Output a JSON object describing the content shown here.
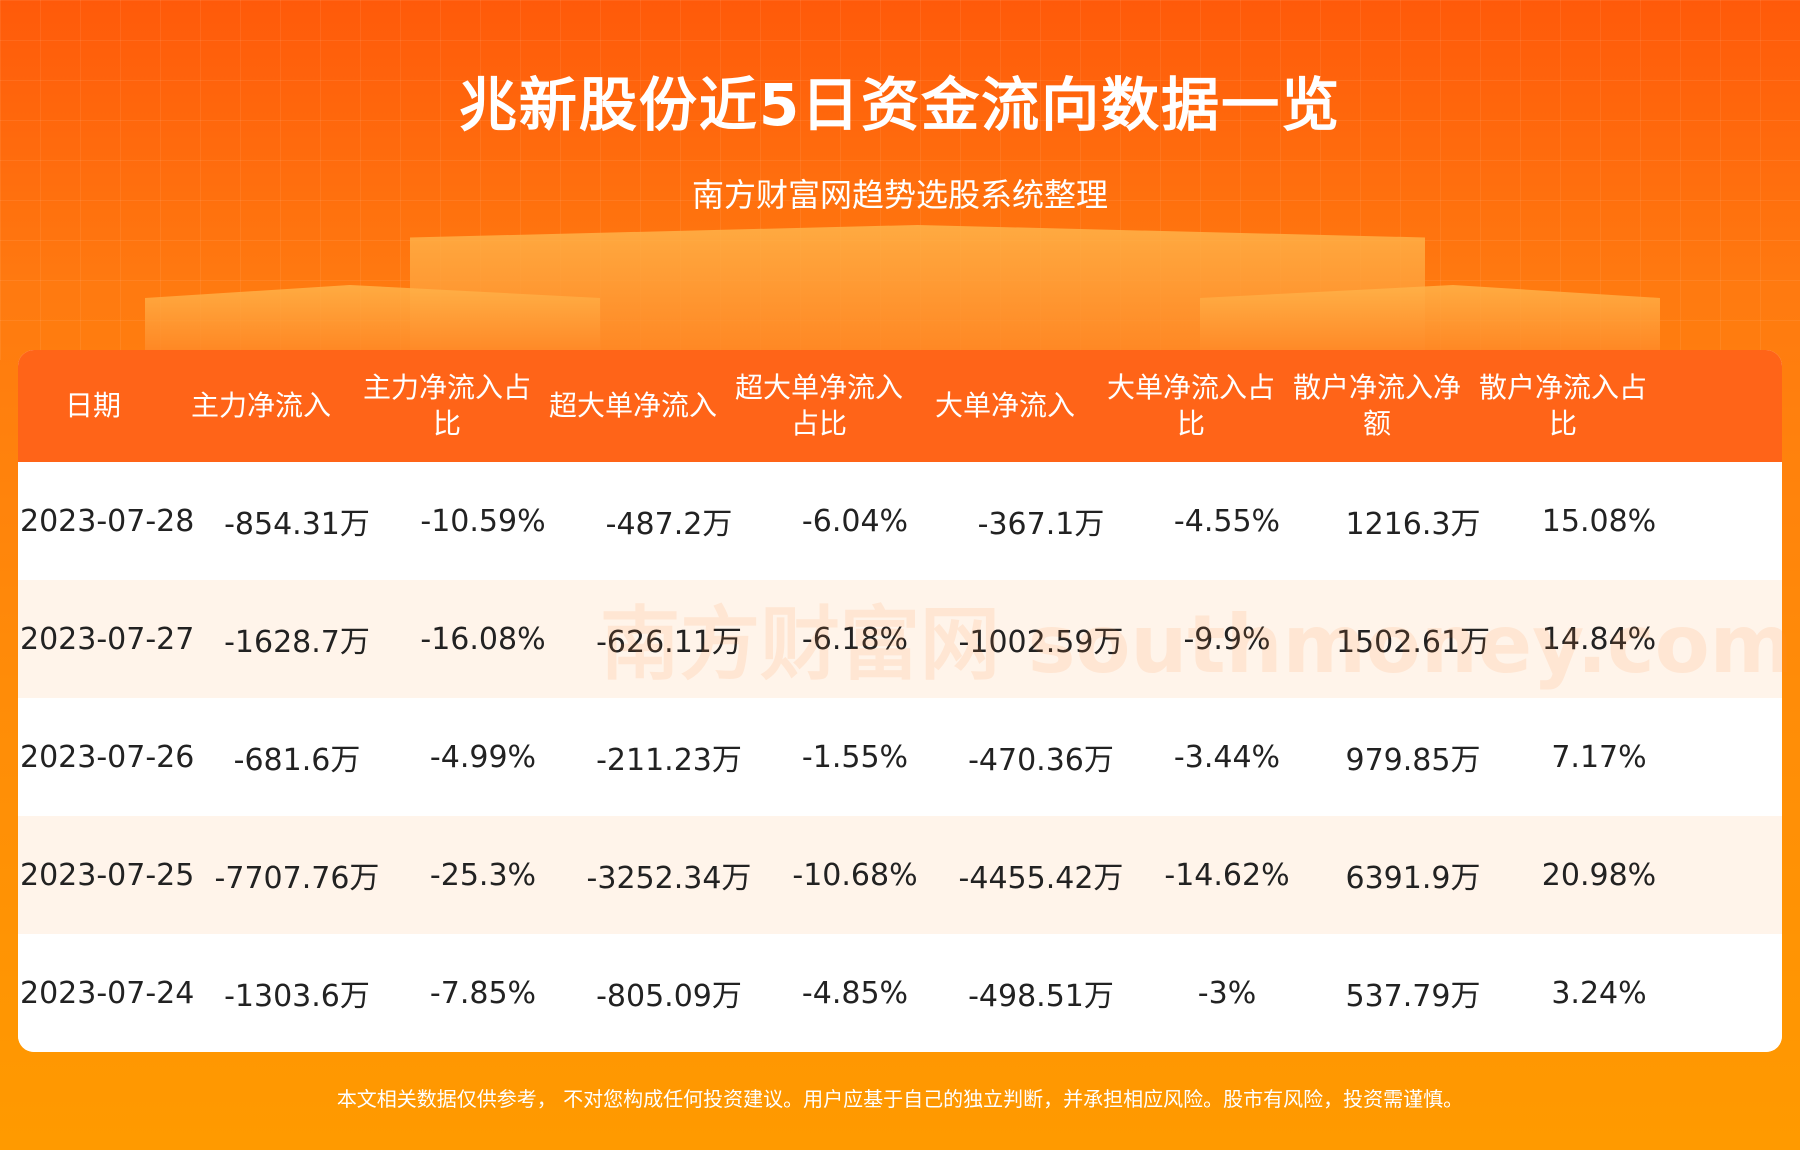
{
  "header": {
    "title": "兆新股份近5日资金流向数据一览",
    "subtitle": "南方财富网趋势选股系统整理"
  },
  "table": {
    "columns": [
      "日期",
      "主力净流入",
      "主力净流入占比",
      "超大单净流入",
      "超大单净流入占比",
      "大单净流入",
      "大单净流入占比",
      "散户净流入净额",
      "散户净流入占比"
    ],
    "rows": [
      [
        "2023-07-28",
        "-854.31万",
        "-10.59%",
        "-487.2万",
        "-6.04%",
        "-367.1万",
        "-4.55%",
        "1216.3万",
        "15.08%"
      ],
      [
        "2023-07-27",
        "-1628.7万",
        "-16.08%",
        "-626.11万",
        "-6.18%",
        "-1002.59万",
        "-9.9%",
        "1502.61万",
        "14.84%"
      ],
      [
        "2023-07-26",
        "-681.6万",
        "-4.99%",
        "-211.23万",
        "-1.55%",
        "-470.36万",
        "-3.44%",
        "979.85万",
        "7.17%"
      ],
      [
        "2023-07-25",
        "-7707.76万",
        "-25.3%",
        "-3252.34万",
        "-10.68%",
        "-4455.42万",
        "-14.62%",
        "6391.9万",
        "20.98%"
      ],
      [
        "2023-07-24",
        "-1303.6万",
        "-7.85%",
        "-805.09万",
        "-4.85%",
        "-498.51万",
        "-3%",
        "537.79万",
        "3.24%"
      ]
    ]
  },
  "watermark": "南方财富网 southmoney.com",
  "footer": {
    "disclaimer": "本文相关数据仅供参考， 不对您构成任何投资建议。用户应基于自己的独立判断，并承担相应风险。股市有风险，投资需谨慎。"
  },
  "colors": {
    "header_bg": "#ff6418",
    "row_alt": "#fff4ea",
    "footer_bg": "#ff9a00"
  }
}
